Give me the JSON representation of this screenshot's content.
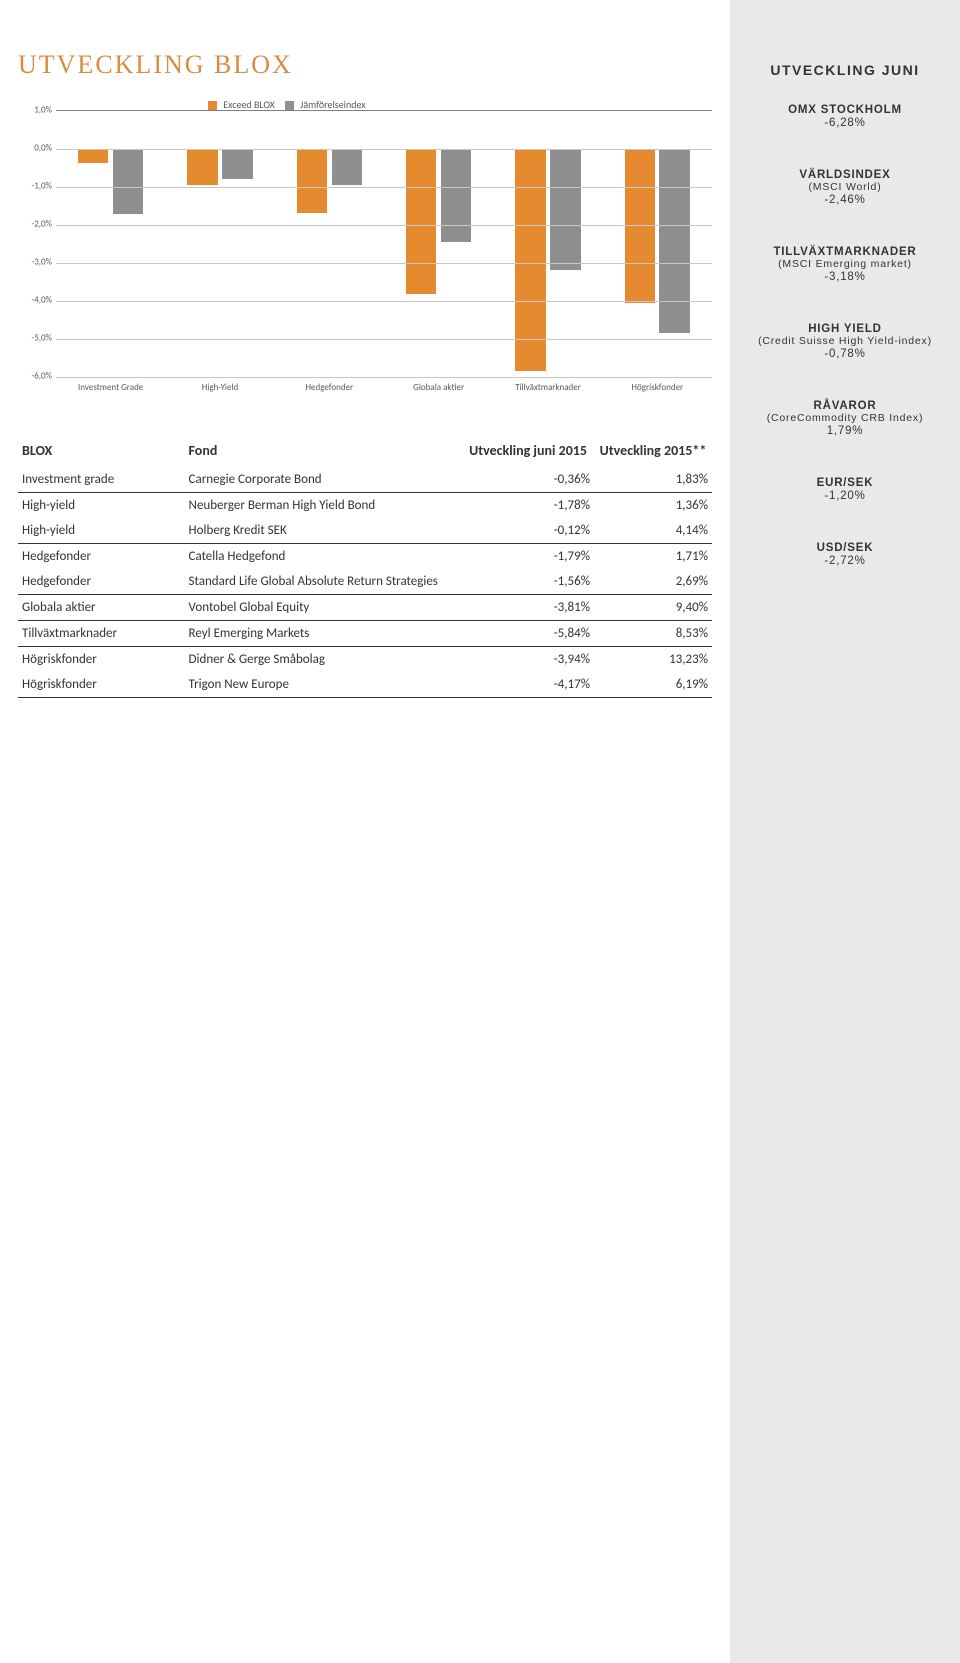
{
  "title": "UTVECKLING BLOX",
  "chart": {
    "type": "bar",
    "legend": [
      {
        "label": "Exceed BLOX",
        "color": "#e58a2e"
      },
      {
        "label": "Jämförelseindex",
        "color": "#8f8f8f"
      }
    ],
    "categories": [
      "Investment Grade",
      "High-Yield",
      "Hedgefonder",
      "Globala aktier",
      "Tillväxtmarknader",
      "Högriskfonder"
    ],
    "series": [
      {
        "color": "#e58a2e",
        "values": [
          -0.36,
          -0.95,
          -1.68,
          -3.81,
          -5.84,
          -4.06
        ]
      },
      {
        "color": "#8f8f8f",
        "values": [
          -1.7,
          -0.78,
          -0.95,
          -2.46,
          -3.18,
          -4.85
        ]
      }
    ],
    "ymax": 1.0,
    "ymin": -6.0,
    "ytick_step": 1.0,
    "grid_color": "#c8c8c8",
    "axis_color": "#808080",
    "tick_labels": [
      "1,0%",
      "0,0%",
      "-1,0%",
      "-2,0%",
      "-3,0%",
      "-4,0%",
      "-5,0%",
      "-6,0%"
    ],
    "label_fontsize": 9,
    "background_color": "#ffffff"
  },
  "table": {
    "headers": {
      "col1": "BLOX",
      "col2": "Fond",
      "col3": "Utveckling juni 2015",
      "col4": "Utveckling 2015**"
    },
    "groups": [
      {
        "rows": [
          {
            "c1": "Investment grade",
            "c2": "Carnegie Corporate Bond",
            "c3": "-0,36%",
            "c4": "1,83%"
          }
        ]
      },
      {
        "rows": [
          {
            "c1": "High-yield",
            "c2": "Neuberger Berman High Yield Bond",
            "c3": "-1,78%",
            "c4": "1,36%"
          },
          {
            "c1": "High-yield",
            "c2": "Holberg Kredit SEK",
            "c3": "-0,12%",
            "c4": "4,14%"
          }
        ]
      },
      {
        "rows": [
          {
            "c1": "Hedgefonder",
            "c2": "Catella Hedgefond",
            "c3": "-1,79%",
            "c4": "1,71%"
          },
          {
            "c1": "Hedgefonder",
            "c2": "Standard Life Global Absolute Return Strategies",
            "c3": "-1,56%",
            "c4": "2,69%"
          }
        ]
      },
      {
        "rows": [
          {
            "c1": "Globala aktier",
            "c2": "Vontobel Global Equity",
            "c3": "-3,81%",
            "c4": "9,40%"
          }
        ]
      },
      {
        "rows": [
          {
            "c1": "Tillväxtmarknader",
            "c2": "Reyl Emerging Markets",
            "c3": "-5,84%",
            "c4": "8,53%"
          }
        ]
      },
      {
        "rows": [
          {
            "c1": "Högriskfonder",
            "c2": "Didner & Gerge Småbolag",
            "c3": "-3,94%",
            "c4": "13,23%"
          },
          {
            "c1": "Högriskfonder",
            "c2": "Trigon New Europe",
            "c3": "-4,17%",
            "c4": "6,19%"
          }
        ]
      }
    ]
  },
  "sidebar": {
    "title": "UTVECKLING JUNI",
    "metrics": [
      {
        "title": "OMX STOCKHOLM",
        "sub": "",
        "val": "-6,28%"
      },
      {
        "title": "VÄRLDSINDEX",
        "sub": "(MSCI World)",
        "val": "-2,46%"
      },
      {
        "title": "TILLVÄXTMARKNADER",
        "sub": "(MSCI Emerging market)",
        "val": "-3,18%"
      },
      {
        "title": "HIGH YIELD",
        "sub": "(Credit Suisse High Yield-index)",
        "val": "-0,78%"
      },
      {
        "title": "RÅVAROR",
        "sub": "(CoreCommodity CRB Index)",
        "val": "1,79%"
      },
      {
        "title": "EUR/SEK",
        "sub": "",
        "val": "-1,20%"
      },
      {
        "title": "USD/SEK",
        "sub": "",
        "val": "-2,72%"
      }
    ]
  }
}
